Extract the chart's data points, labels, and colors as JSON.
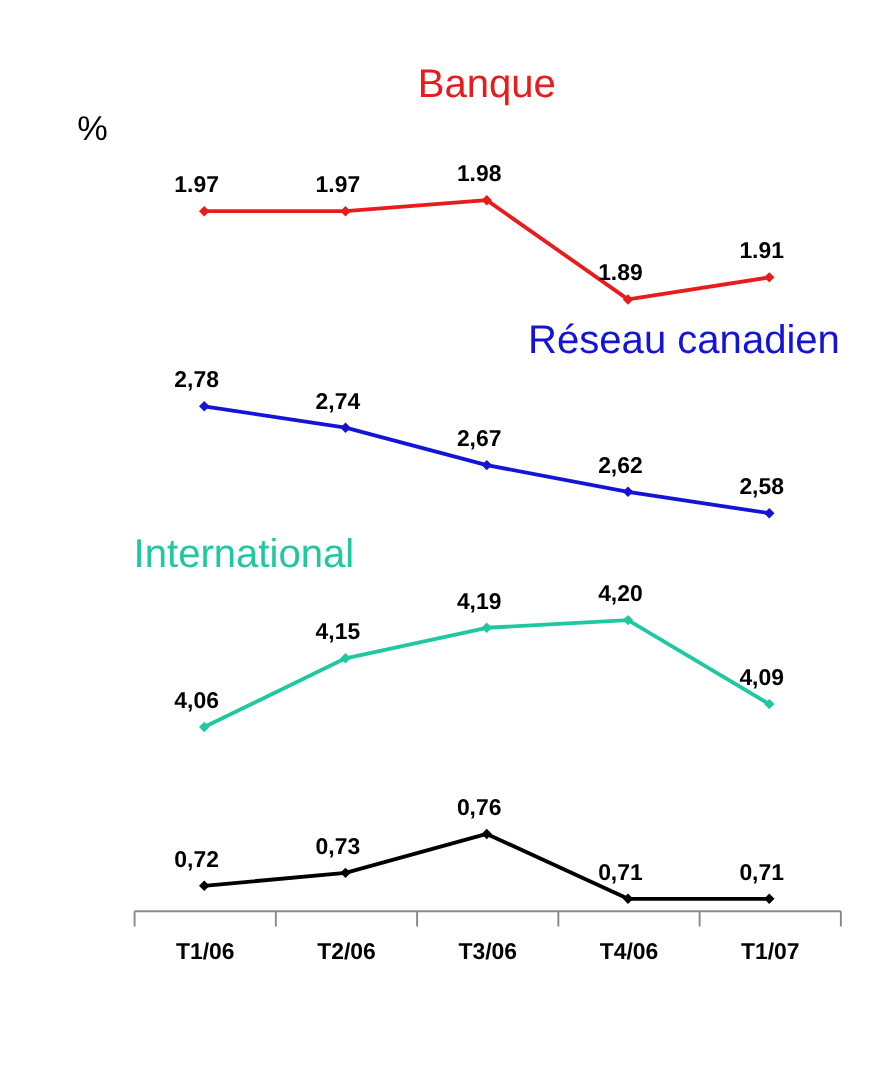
{
  "chart_data": [
    {
      "type": "line",
      "ylabel": "%",
      "marker": "diamond",
      "tick_labels": false,
      "grid": false,
      "series": [
        {
          "name": "Banque",
          "color": "#e81c1c",
          "values": [
            1.97,
            1.97,
            1.98,
            1.89,
            1.91
          ],
          "value_labels": [
            "1.97",
            "1.97",
            "1.98",
            "1.89",
            "1.91"
          ]
        }
      ]
    },
    {
      "type": "line",
      "marker": "diamond",
      "tick_labels": false,
      "grid": false,
      "series": [
        {
          "name": "Réseau canadien",
          "color": "#1414d8",
          "values": [
            2.78,
            2.74,
            2.67,
            2.62,
            2.58
          ],
          "value_labels": [
            "2,78",
            "2,74",
            "2,67",
            "2,62",
            "2,58"
          ]
        }
      ]
    },
    {
      "type": "line",
      "marker": "diamond",
      "tick_labels": false,
      "grid": false,
      "series": [
        {
          "name": "International",
          "color": "#1fc8a0",
          "values": [
            4.06,
            4.15,
            4.19,
            4.2,
            4.09
          ],
          "value_labels": [
            "4,06",
            "4,15",
            "4,19",
            "4,20",
            "4,09"
          ]
        }
      ]
    },
    {
      "type": "line",
      "categories": [
        "T1/06",
        "T2/06",
        "T3/06",
        "T4/06",
        "T1/07"
      ],
      "marker": "diamond",
      "tick_labels": "x",
      "grid": false,
      "series": [
        {
          "color": "#000000",
          "values": [
            0.72,
            0.73,
            0.76,
            0.71,
            0.71
          ],
          "value_labels": [
            "0,72",
            "0,73",
            "0,76",
            "0,71",
            "0,71"
          ]
        }
      ]
    }
  ]
}
